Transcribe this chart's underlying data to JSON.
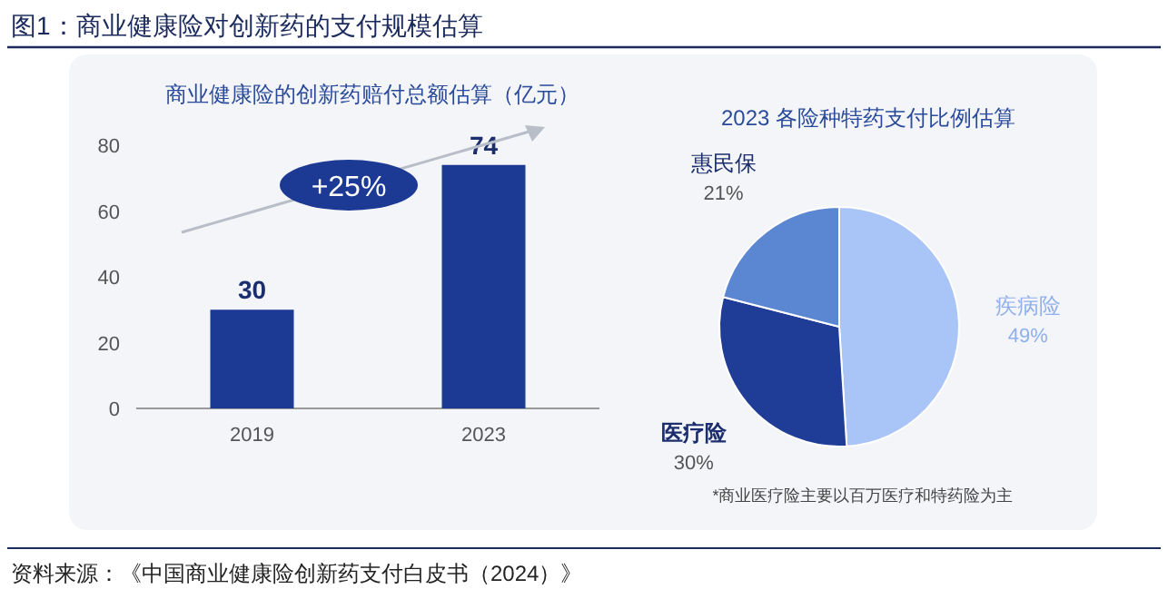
{
  "chart_data": [
    {
      "type": "bar",
      "title": "图1：商业健康险对创新药的支付规模估算",
      "subtitle": "商业健康险的创新药赔付总额估算（亿元）",
      "categories": [
        "2019",
        "2023"
      ],
      "values": [
        30,
        74
      ],
      "color": "#1c3a94",
      "ylim": [
        0,
        80
      ],
      "yticks": [
        0,
        20,
        40,
        60,
        80
      ],
      "data_labels": true,
      "annotations": [
        "+25%",
        "资料来源：《中国商业健康险创新药支付白皮书（2024）》"
      ]
    },
    {
      "type": "pie",
      "title": "2023 各险种特药支付比例估算",
      "categories": [
        "疾病险",
        "医疗险",
        "惠民保"
      ],
      "values": [
        49,
        30,
        21
      ],
      "colors": [
        "#a9c5f7",
        "#1f3c96",
        "#5a86d2"
      ],
      "value_labels": [
        "49%",
        "30%",
        "21%"
      ],
      "annotations": [
        "*商业医疗险主要以百万医疗和特药险为主"
      ]
    }
  ]
}
